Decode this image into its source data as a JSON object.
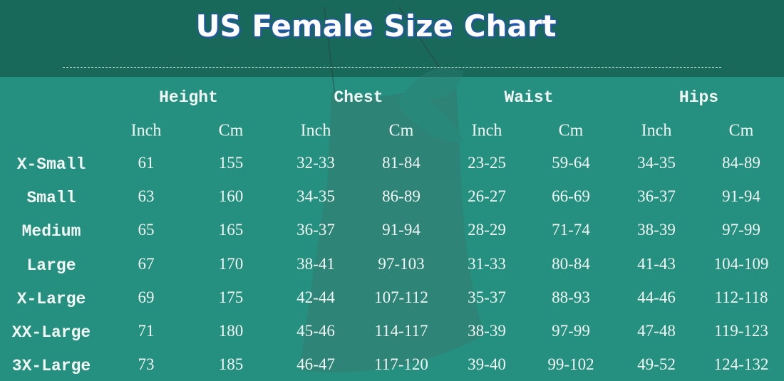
{
  "header": {
    "title": "US Female Size Chart"
  },
  "table": {
    "groups": [
      "Height",
      "Chest",
      "Waist",
      "Hips"
    ],
    "units": [
      "Inch",
      "Cm",
      "Inch",
      "Cm",
      "Inch",
      "Cm",
      "Inch",
      "Cm"
    ],
    "rows": [
      [
        "X-Small",
        "61",
        "155",
        "32-33",
        "81-84",
        "23-25",
        "59-64",
        "34-35",
        "84-89"
      ],
      [
        "Small",
        "63",
        "160",
        "34-35",
        "86-89",
        "26-27",
        "66-69",
        "36-37",
        "91-94"
      ],
      [
        "Medium",
        "65",
        "165",
        "36-37",
        "91-94",
        "28-29",
        "71-74",
        "38-39",
        "97-99"
      ],
      [
        "Large",
        "67",
        "170",
        "38-41",
        "97-103",
        "31-33",
        "80-84",
        "41-43",
        "104-109"
      ],
      [
        "X-Large",
        "69",
        "175",
        "42-44",
        "107-112",
        "35-37",
        "88-93",
        "44-46",
        "112-118"
      ],
      [
        "XX-Large",
        "71",
        "180",
        "45-46",
        "114-117",
        "38-39",
        "97-99",
        "47-48",
        "119-123"
      ],
      [
        "3X-Large",
        "73",
        "185",
        "46-47",
        "117-120",
        "39-40",
        "99-102",
        "49-52",
        "124-132"
      ]
    ]
  }
}
